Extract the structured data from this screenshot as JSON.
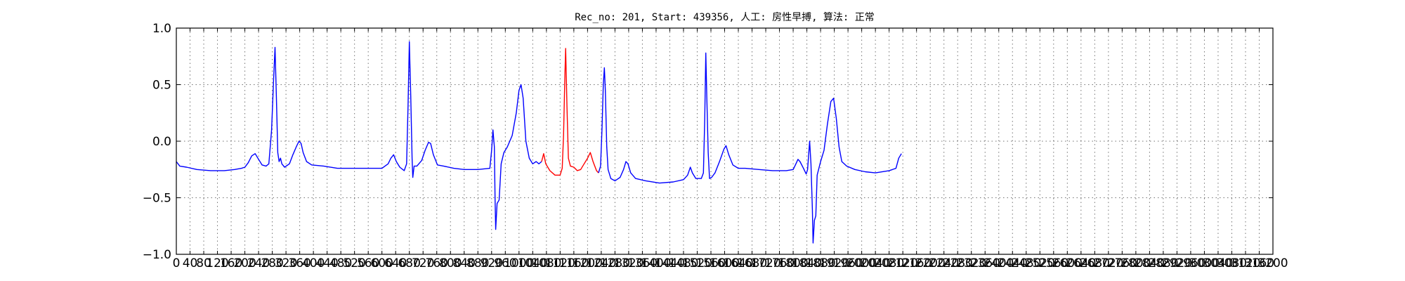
{
  "chart_data": {
    "type": "line",
    "title": "Rec_no: 201, Start: 439356, 人工: 房性早搏, 算法: 正常",
    "xlabel": "",
    "ylabel": "",
    "xlim": [
      0,
      3200
    ],
    "ylim": [
      -1.0,
      1.0
    ],
    "grid": true,
    "ytick_labels": [
      "1.0",
      "0.5",
      "0.0",
      "−0.5",
      "−1.0"
    ],
    "ytick_values": [
      1.0,
      0.5,
      0.0,
      -0.5,
      -1.0
    ],
    "xtick_values": [
      0,
      40,
      80,
      120,
      160,
      200,
      240,
      280,
      320,
      360,
      400,
      440,
      480,
      520,
      560,
      600,
      640,
      680,
      720,
      760,
      800,
      840,
      880,
      920,
      960,
      1000,
      1040,
      1080,
      1120,
      1160,
      1200,
      1240,
      1280,
      1320,
      1360,
      1400,
      1440,
      1480,
      1520,
      1560,
      1600,
      1640,
      1680,
      1720,
      1760,
      1800,
      1840,
      1880,
      1920,
      1960,
      2000,
      2040,
      2080,
      2120,
      2160,
      2200,
      2240,
      2280,
      2320,
      2360,
      2400,
      2440,
      2480,
      2520,
      2560,
      2600,
      2640,
      2680,
      2720,
      2760,
      2800,
      2840,
      2880,
      2920,
      2960,
      3000,
      3040,
      3080,
      3120,
      3160,
      3200
    ],
    "xtick_labels": [
      "0",
      "40",
      "80",
      "120",
      "160",
      "200",
      "240",
      "280",
      "320",
      "360",
      "400",
      "440",
      "480",
      "520",
      "560",
      "600",
      "640",
      "680",
      "720",
      "760",
      "800",
      "840",
      "880",
      "920",
      "960",
      "1000",
      "1040",
      "1080",
      "1120",
      "1160",
      "1200",
      "1240",
      "1280",
      "1320",
      "1360",
      "1400",
      "1440",
      "1480",
      "1520",
      "1560",
      "1600",
      "1640",
      "1680",
      "1720",
      "1760",
      "1800",
      "1840",
      "1880",
      "1920",
      "1960",
      "2000",
      "2040",
      "2080",
      "2120",
      "2160",
      "2200",
      "2240",
      "2280",
      "2320",
      "2360",
      "2400",
      "2440",
      "2480",
      "2520",
      "2560",
      "2600",
      "2640",
      "2680",
      "2720",
      "2760",
      "2800",
      "2840",
      "2880",
      "2920",
      "2960",
      "3000",
      "3040",
      "3080",
      "3120",
      "3160",
      "3200"
    ],
    "series": [
      {
        "name": "ecg-segment-1",
        "color": "#0000ff",
        "points": [
          [
            0,
            -0.18
          ],
          [
            10,
            -0.22
          ],
          [
            30,
            -0.23
          ],
          [
            60,
            -0.25
          ],
          [
            100,
            -0.26
          ],
          [
            140,
            -0.26
          ],
          [
            170,
            -0.25
          ],
          [
            190,
            -0.24
          ],
          [
            200,
            -0.23
          ],
          [
            210,
            -0.19
          ],
          [
            220,
            -0.13
          ],
          [
            230,
            -0.11
          ],
          [
            240,
            -0.16
          ],
          [
            250,
            -0.21
          ],
          [
            262,
            -0.22
          ],
          [
            270,
            -0.2
          ],
          [
            278,
            0.1
          ],
          [
            284,
            0.55
          ],
          [
            288,
            0.83
          ],
          [
            292,
            0.4
          ],
          [
            296,
            -0.1
          ],
          [
            300,
            -0.18
          ],
          [
            304,
            -0.15
          ],
          [
            308,
            -0.2
          ],
          [
            316,
            -0.23
          ],
          [
            330,
            -0.2
          ],
          [
            340,
            -0.12
          ],
          [
            350,
            -0.05
          ],
          [
            358,
            0.0
          ],
          [
            364,
            -0.02
          ],
          [
            370,
            -0.1
          ],
          [
            380,
            -0.18
          ],
          [
            395,
            -0.21
          ],
          [
            430,
            -0.22
          ],
          [
            470,
            -0.24
          ],
          [
            510,
            -0.24
          ],
          [
            560,
            -0.24
          ],
          [
            600,
            -0.24
          ],
          [
            618,
            -0.2
          ],
          [
            626,
            -0.15
          ],
          [
            634,
            -0.12
          ],
          [
            642,
            -0.18
          ],
          [
            652,
            -0.23
          ],
          [
            665,
            -0.26
          ],
          [
            672,
            -0.2
          ],
          [
            676,
            0.3
          ],
          [
            680,
            0.88
          ],
          [
            684,
            0.4
          ],
          [
            688,
            -0.15
          ],
          [
            690,
            -0.32
          ],
          [
            694,
            -0.22
          ],
          [
            702,
            -0.22
          ],
          [
            716,
            -0.17
          ],
          [
            726,
            -0.08
          ],
          [
            736,
            -0.01
          ],
          [
            742,
            -0.02
          ],
          [
            750,
            -0.12
          ],
          [
            762,
            -0.21
          ],
          [
            780,
            -0.22
          ],
          [
            810,
            -0.24
          ],
          [
            840,
            -0.25
          ],
          [
            880,
            -0.25
          ],
          [
            915,
            -0.24
          ],
          [
            920,
            -0.08
          ],
          [
            924,
            0.1
          ],
          [
            928,
            -0.05
          ],
          [
            930,
            -0.5
          ],
          [
            932,
            -0.78
          ],
          [
            936,
            -0.55
          ],
          [
            942,
            -0.52
          ],
          [
            948,
            -0.2
          ],
          [
            956,
            -0.1
          ],
          [
            966,
            -0.05
          ],
          [
            980,
            0.05
          ],
          [
            992,
            0.25
          ],
          [
            1000,
            0.45
          ],
          [
            1006,
            0.5
          ],
          [
            1012,
            0.38
          ],
          [
            1020,
            0.0
          ],
          [
            1030,
            -0.15
          ],
          [
            1040,
            -0.2
          ],
          [
            1050,
            -0.18
          ],
          [
            1058,
            -0.2
          ],
          [
            1066,
            -0.18
          ]
        ]
      },
      {
        "name": "ecg-segment-red",
        "color": "#ff0000",
        "points": [
          [
            1066,
            -0.18
          ],
          [
            1072,
            -0.11
          ],
          [
            1078,
            -0.2
          ],
          [
            1090,
            -0.26
          ],
          [
            1105,
            -0.3
          ],
          [
            1120,
            -0.3
          ],
          [
            1126,
            -0.24
          ],
          [
            1130,
            0.05
          ],
          [
            1134,
            0.6
          ],
          [
            1136,
            0.82
          ],
          [
            1140,
            0.3
          ],
          [
            1144,
            -0.15
          ],
          [
            1150,
            -0.22
          ],
          [
            1160,
            -0.23
          ],
          [
            1170,
            -0.26
          ],
          [
            1180,
            -0.25
          ],
          [
            1190,
            -0.2
          ],
          [
            1200,
            -0.15
          ],
          [
            1208,
            -0.1
          ],
          [
            1216,
            -0.18
          ],
          [
            1226,
            -0.26
          ],
          [
            1232,
            -0.28
          ]
        ]
      },
      {
        "name": "ecg-segment-2",
        "color": "#0000ff",
        "points": [
          [
            1232,
            -0.28
          ],
          [
            1238,
            -0.22
          ],
          [
            1242,
            0.1
          ],
          [
            1246,
            0.5
          ],
          [
            1249,
            0.65
          ],
          [
            1252,
            0.45
          ],
          [
            1256,
            -0.05
          ],
          [
            1260,
            -0.25
          ],
          [
            1268,
            -0.33
          ],
          [
            1280,
            -0.35
          ],
          [
            1295,
            -0.32
          ],
          [
            1305,
            -0.25
          ],
          [
            1312,
            -0.18
          ],
          [
            1318,
            -0.2
          ],
          [
            1326,
            -0.28
          ],
          [
            1340,
            -0.33
          ],
          [
            1370,
            -0.35
          ],
          [
            1410,
            -0.37
          ],
          [
            1450,
            -0.36
          ],
          [
            1480,
            -0.34
          ],
          [
            1492,
            -0.3
          ],
          [
            1500,
            -0.23
          ],
          [
            1506,
            -0.28
          ],
          [
            1516,
            -0.33
          ],
          [
            1532,
            -0.33
          ],
          [
            1538,
            -0.28
          ],
          [
            1542,
            0.2
          ],
          [
            1545,
            0.78
          ],
          [
            1548,
            0.4
          ],
          [
            1552,
            -0.1
          ],
          [
            1556,
            -0.33
          ],
          [
            1562,
            -0.32
          ],
          [
            1572,
            -0.28
          ],
          [
            1585,
            -0.18
          ],
          [
            1598,
            -0.07
          ],
          [
            1604,
            -0.04
          ],
          [
            1612,
            -0.12
          ],
          [
            1624,
            -0.21
          ],
          [
            1640,
            -0.24
          ],
          [
            1660,
            -0.24
          ],
          [
            1700,
            -0.25
          ],
          [
            1740,
            -0.26
          ],
          [
            1780,
            -0.26
          ],
          [
            1800,
            -0.25
          ],
          [
            1808,
            -0.2
          ],
          [
            1814,
            -0.16
          ],
          [
            1820,
            -0.18
          ],
          [
            1830,
            -0.24
          ],
          [
            1838,
            -0.29
          ],
          [
            1842,
            -0.25
          ],
          [
            1848,
            0.0
          ],
          [
            1852,
            -0.2
          ],
          [
            1856,
            -0.6
          ],
          [
            1858,
            -0.9
          ],
          [
            1862,
            -0.7
          ],
          [
            1866,
            -0.66
          ],
          [
            1870,
            -0.3
          ],
          [
            1880,
            -0.18
          ],
          [
            1890,
            -0.08
          ],
          [
            1900,
            0.15
          ],
          [
            1910,
            0.35
          ],
          [
            1918,
            0.38
          ],
          [
            1926,
            0.2
          ],
          [
            1934,
            -0.05
          ],
          [
            1942,
            -0.18
          ],
          [
            1956,
            -0.22
          ],
          [
            1980,
            -0.25
          ],
          [
            2010,
            -0.27
          ],
          [
            2040,
            -0.28
          ],
          [
            2080,
            -0.26
          ],
          [
            2100,
            -0.24
          ],
          [
            2108,
            -0.15
          ],
          [
            2116,
            -0.11
          ]
        ]
      }
    ]
  }
}
